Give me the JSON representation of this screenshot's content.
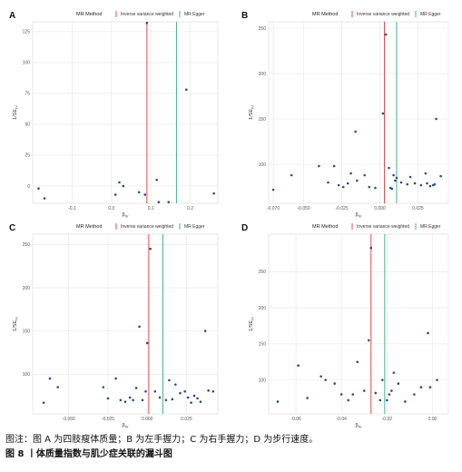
{
  "caption": {
    "note": "图注：图 A 为四肢瘦体质量；B 为左手握力；C 为右手握力；D 为步行速度。",
    "title": "图 8 丨体质量指数与肌少症关联的漏斗图"
  },
  "colors": {
    "ivw": "#e8474b",
    "egger": "#3fb58f",
    "point": "#2d4a8a",
    "grid": "#e5e5e5"
  },
  "legend": {
    "title": "MR Method",
    "ivw": "Inverse variance weighted",
    "egger": "MR Egger"
  },
  "chart_data": [
    {
      "panel": "A",
      "type": "scatter",
      "xlabel": "βIV",
      "ylabel": "1/SEIV",
      "xlim": [
        -0.2,
        0.27
      ],
      "ylim": [
        -14,
        133
      ],
      "xticks": [
        -0.1,
        0.0,
        0.1,
        0.2
      ],
      "xtick_labels": [
        "-0.1",
        "0.0",
        "0.1",
        "0.2"
      ],
      "yticks": [
        0,
        25,
        50,
        75,
        100,
        125
      ],
      "ivw_beta": 0.09,
      "egger_beta": 0.165,
      "x": [
        -0.185,
        -0.17,
        0.01,
        0.02,
        0.03,
        0.07,
        0.085,
        0.09,
        0.115,
        0.12,
        0.145,
        0.19,
        0.26
      ],
      "y": [
        -2,
        -10,
        -7,
        3,
        0,
        -5,
        -7,
        132,
        5,
        -13,
        -13,
        78,
        -6
      ]
    },
    {
      "panel": "B",
      "type": "scatter",
      "xlabel": "βIV",
      "ylabel": "1/SEIV",
      "xlim": [
        -0.073,
        0.045
      ],
      "ylim": [
        57,
        257
      ],
      "xticks": [
        -0.07,
        -0.05,
        -0.025,
        0.0,
        0.025
      ],
      "xtick_labels": [
        "-0.070",
        "-0.050",
        "-0.025",
        "0.000",
        "0.025"
      ],
      "yticks": [
        100,
        150,
        200,
        250
      ],
      "ivw_beta": 0.003,
      "egger_beta": 0.011,
      "x": [
        -0.07,
        -0.058,
        -0.04,
        -0.034,
        -0.03,
        -0.027,
        -0.024,
        -0.021,
        -0.019,
        -0.016,
        -0.015,
        -0.01,
        -0.007,
        -0.003,
        0.002,
        0.004,
        0.006,
        0.007,
        0.008,
        0.009,
        0.01,
        0.011,
        0.014,
        0.018,
        0.02,
        0.023,
        0.027,
        0.03,
        0.031,
        0.033,
        0.035,
        0.036,
        0.037,
        0.04
      ],
      "y": [
        72,
        88,
        98,
        80,
        98,
        77,
        75,
        79,
        90,
        136,
        82,
        88,
        75,
        74,
        156,
        243,
        96,
        74,
        73,
        88,
        82,
        85,
        80,
        78,
        86,
        79,
        77,
        90,
        79,
        76,
        77,
        78,
        150,
        87
      ]
    },
    {
      "panel": "C",
      "type": "scatter",
      "xlabel": "βIV",
      "ylabel": "1/SEIV",
      "xlim": [
        -0.073,
        0.045
      ],
      "ylim": [
        54,
        262
      ],
      "xticks": [
        -0.05,
        -0.025,
        0.0,
        0.025
      ],
      "xtick_labels": [
        "-0.050",
        "-0.025",
        "0.000",
        "0.025"
      ],
      "yticks": [
        100,
        150,
        200,
        250
      ],
      "ivw_beta": 0.001,
      "egger_beta": 0.01,
      "x": [
        -0.066,
        -0.062,
        -0.057,
        -0.028,
        -0.025,
        -0.02,
        -0.017,
        -0.014,
        -0.011,
        -0.009,
        -0.007,
        -0.005,
        -0.003,
        -0.001,
        0.0,
        0.002,
        0.005,
        0.008,
        0.012,
        0.014,
        0.016,
        0.018,
        0.021,
        0.024,
        0.026,
        0.028,
        0.03,
        0.032,
        0.034,
        0.037,
        0.039,
        0.042
      ],
      "y": [
        67,
        95,
        85,
        85,
        72,
        95,
        70,
        68,
        73,
        70,
        84,
        155,
        70,
        80,
        136,
        245,
        80,
        73,
        70,
        93,
        71,
        88,
        78,
        80,
        73,
        67,
        75,
        72,
        68,
        150,
        81,
        80
      ]
    },
    {
      "panel": "D",
      "type": "scatter",
      "xlabel": "βIV",
      "ylabel": "1/SEIV",
      "xlim": [
        -0.072,
        0.007
      ],
      "ylim": [
        53,
        302
      ],
      "xticks": [
        -0.06,
        -0.04,
        -0.02,
        0.0
      ],
      "xtick_labels": [
        "-0.06",
        "-0.04",
        "-0.02",
        "0.00"
      ],
      "yticks": [
        100,
        150,
        200,
        250
      ],
      "ivw_beta": -0.027,
      "egger_beta": -0.021,
      "x": [
        -0.068,
        -0.059,
        -0.055,
        -0.049,
        -0.047,
        -0.043,
        -0.04,
        -0.037,
        -0.035,
        -0.033,
        -0.03,
        -0.028,
        -0.027,
        -0.025,
        -0.023,
        -0.022,
        -0.02,
        -0.019,
        -0.018,
        -0.017,
        -0.015,
        -0.012,
        -0.008,
        -0.005,
        -0.002,
        -0.001,
        0.002
      ],
      "y": [
        70,
        120,
        75,
        105,
        100,
        95,
        80,
        72,
        80,
        125,
        85,
        155,
        283,
        82,
        72,
        100,
        72,
        80,
        85,
        110,
        95,
        70,
        80,
        90,
        165,
        90,
        100
      ]
    }
  ]
}
